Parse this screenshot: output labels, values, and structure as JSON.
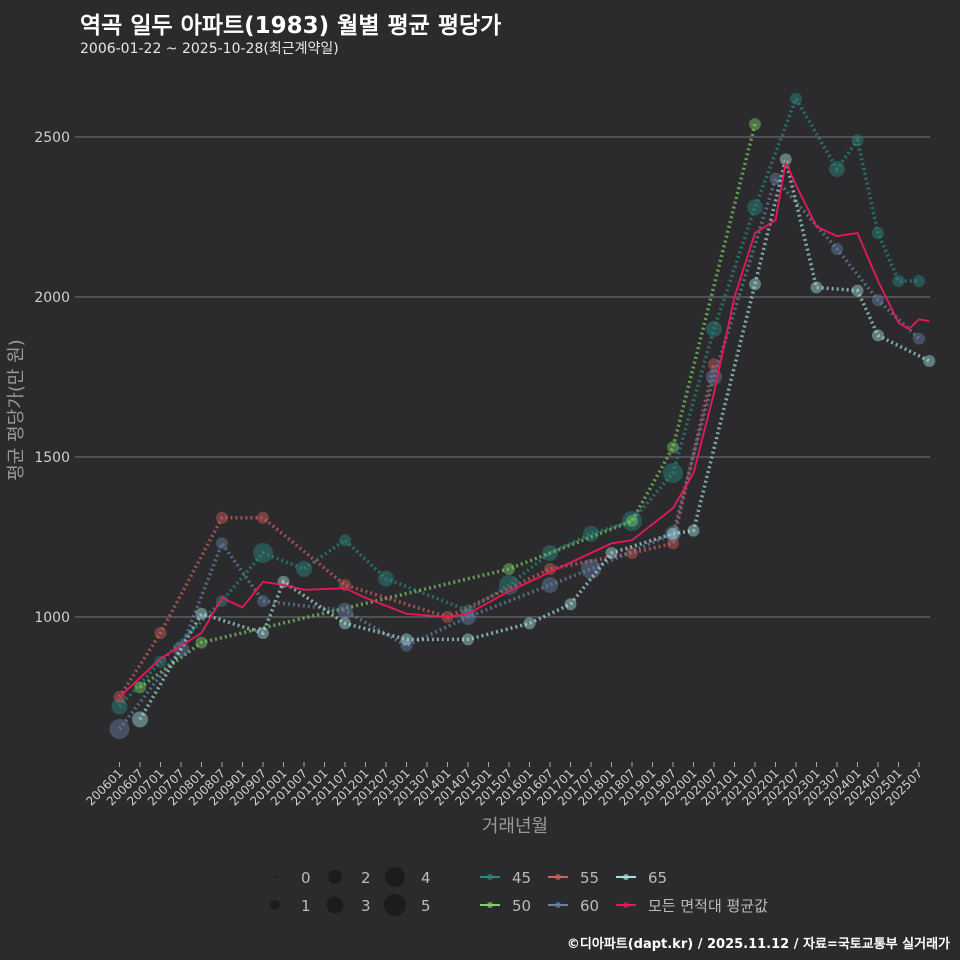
{
  "title": "역곡 일두 아파트(1983) 월별 평균 평당가",
  "subtitle": "2006-01-22 ~ 2025-10-28(최근계약일)",
  "credit": "©디아파트(dapt.kr) / 2025.11.12 / 자료=국토교통부 실거래가",
  "chart_data": {
    "type": "scatter",
    "xlabel": "거래년월",
    "ylabel": "평균 평당가(만 원)",
    "ylim": [
      550,
      2720
    ],
    "yticks": [
      1000,
      1500,
      2000,
      2500
    ],
    "xticks": [
      "200601",
      "200607",
      "200701",
      "200707",
      "200801",
      "200807",
      "200901",
      "200907",
      "201001",
      "201007",
      "201101",
      "201107",
      "201201",
      "201207",
      "201301",
      "201307",
      "201401",
      "201407",
      "201501",
      "201507",
      "201601",
      "201607",
      "201701",
      "201707",
      "201801",
      "201807",
      "201901",
      "201907",
      "202001",
      "202007",
      "202101",
      "202107",
      "202201",
      "202207",
      "202301",
      "202307",
      "202401",
      "202407",
      "202501",
      "202507"
    ],
    "size_legend": {
      "labels": [
        "0",
        "1",
        "2",
        "3",
        "4",
        "5"
      ]
    },
    "series": [
      {
        "name": "45",
        "color": "#2a8a80",
        "points": [
          [
            "2006-01",
            720,
            3
          ],
          [
            "2007-01",
            860,
            2
          ],
          [
            "2008-07",
            1050,
            2
          ],
          [
            "2009-07",
            1200,
            4
          ],
          [
            "2010-07",
            1150,
            3
          ],
          [
            "2011-07",
            1240,
            2
          ],
          [
            "2012-07",
            1120,
            3
          ],
          [
            "2014-07",
            1020,
            2
          ],
          [
            "2015-07",
            1100,
            4
          ],
          [
            "2016-07",
            1200,
            3
          ],
          [
            "2017-07",
            1260,
            3
          ],
          [
            "2018-07",
            1300,
            4
          ],
          [
            "2019-07",
            1450,
            4
          ],
          [
            "2020-07",
            1900,
            3
          ],
          [
            "2021-07",
            2280,
            3
          ],
          [
            "2022-07",
            2620,
            2
          ],
          [
            "2023-07",
            2400,
            3
          ],
          [
            "2024-01",
            2490,
            2
          ],
          [
            "2024-07",
            2200,
            2
          ],
          [
            "2025-01",
            2050,
            2
          ],
          [
            "2025-07",
            2050,
            2
          ]
        ]
      },
      {
        "name": "50",
        "color": "#7ed068",
        "points": [
          [
            "2006-07",
            780,
            2
          ],
          [
            "2008-01",
            920,
            2
          ],
          [
            "2015-07",
            1150,
            2
          ],
          [
            "2018-07",
            1300,
            2
          ],
          [
            "2019-07",
            1530,
            2
          ],
          [
            "2021-07",
            2540,
            2
          ]
        ]
      },
      {
        "name": "55",
        "color": "#d0605e",
        "points": [
          [
            "2006-01",
            750,
            2
          ],
          [
            "2007-01",
            950,
            2
          ],
          [
            "2008-07",
            1310,
            2
          ],
          [
            "2009-07",
            1310,
            2
          ],
          [
            "2011-07",
            1100,
            2
          ],
          [
            "2014-01",
            1000,
            2
          ],
          [
            "2016-07",
            1150,
            2
          ],
          [
            "2018-07",
            1200,
            2
          ],
          [
            "2019-07",
            1230,
            2
          ],
          [
            "2020-07",
            1790,
            2
          ]
        ]
      },
      {
        "name": "60",
        "color": "#6a80a8",
        "points": [
          [
            "2006-01",
            650,
            4
          ],
          [
            "2007-07",
            900,
            3
          ],
          [
            "2008-07",
            1230,
            2
          ],
          [
            "2009-07",
            1050,
            2
          ],
          [
            "2011-07",
            1020,
            3
          ],
          [
            "2013-01",
            910,
            2
          ],
          [
            "2014-07",
            1000,
            3
          ],
          [
            "2016-07",
            1100,
            3
          ],
          [
            "2017-07",
            1150,
            4
          ],
          [
            "2019-07",
            1260,
            3
          ],
          [
            "2020-07",
            1750,
            3
          ],
          [
            "2022-01",
            2370,
            2
          ],
          [
            "2023-07",
            2150,
            2
          ],
          [
            "2024-07",
            1990,
            2
          ],
          [
            "2025-07",
            1870,
            2
          ]
        ]
      },
      {
        "name": "65",
        "color": "#a8e0e0",
        "points": [
          [
            "2006-07",
            680,
            3
          ],
          [
            "2008-01",
            1010,
            2
          ],
          [
            "2009-07",
            950,
            2
          ],
          [
            "2010-01",
            1110,
            2
          ],
          [
            "2011-07",
            980,
            2
          ],
          [
            "2013-01",
            930,
            2
          ],
          [
            "2014-07",
            930,
            2
          ],
          [
            "2016-01",
            980,
            2
          ],
          [
            "2017-01",
            1040,
            2
          ],
          [
            "2018-01",
            1200,
            2
          ],
          [
            "2019-07",
            1260,
            2
          ],
          [
            "2020-01",
            1270,
            2
          ],
          [
            "2021-07",
            2040,
            2
          ],
          [
            "2022-04",
            2430,
            2
          ],
          [
            "2023-01",
            2030,
            2
          ],
          [
            "2024-01",
            2020,
            2
          ],
          [
            "2024-07",
            1880,
            2
          ],
          [
            "2025-10",
            1800,
            2
          ]
        ]
      },
      {
        "name": "모든 면적대 평균값",
        "color": "#e8185a",
        "line_only": true,
        "points": [
          [
            "2006-01",
            750
          ],
          [
            "2007-01",
            870
          ],
          [
            "2008-01",
            950
          ],
          [
            "2008-07",
            1060
          ],
          [
            "2009-01",
            1030
          ],
          [
            "2009-07",
            1110
          ],
          [
            "2010-01",
            1100
          ],
          [
            "2010-07",
            1085
          ],
          [
            "2011-07",
            1090
          ],
          [
            "2012-01",
            1060
          ],
          [
            "2013-01",
            1010
          ],
          [
            "2014-01",
            1000
          ],
          [
            "2014-07",
            1010
          ],
          [
            "2015-07",
            1080
          ],
          [
            "2016-07",
            1140
          ],
          [
            "2017-07",
            1200
          ],
          [
            "2018-01",
            1230
          ],
          [
            "2018-07",
            1240
          ],
          [
            "2019-07",
            1340
          ],
          [
            "2020-01",
            1450
          ],
          [
            "2020-07",
            1700
          ],
          [
            "2021-01",
            2000
          ],
          [
            "2021-07",
            2200
          ],
          [
            "2022-01",
            2240
          ],
          [
            "2022-04",
            2420
          ],
          [
            "2022-07",
            2350
          ],
          [
            "2023-01",
            2220
          ],
          [
            "2023-07",
            2190
          ],
          [
            "2024-01",
            2200
          ],
          [
            "2024-07",
            2050
          ],
          [
            "2025-01",
            1920
          ],
          [
            "2025-04",
            1900
          ],
          [
            "2025-07",
            1930
          ],
          [
            "2025-10",
            1925
          ]
        ]
      }
    ]
  }
}
